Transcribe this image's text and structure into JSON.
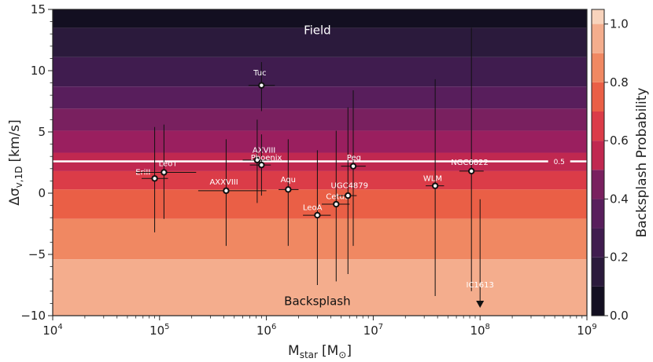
{
  "chart_data": {
    "type": "scatter",
    "x_scale": "log",
    "xlim": [
      10000,
      1000000000
    ],
    "ylim": [
      -10,
      15
    ],
    "xlabel_main": "M",
    "xlabel_sub": "star",
    "xlabel_unit_pre": "[M",
    "xlabel_unit_sym": "⊙",
    "xlabel_unit_post": "]",
    "ylabel_main": "Δσ",
    "ylabel_sub": "v,1D",
    "ylabel_unit": "[km/s]",
    "x_ticks": [
      {
        "exp": 4,
        "label_base": "10",
        "label_exp": "4"
      },
      {
        "exp": 5,
        "label_base": "10",
        "label_exp": "5"
      },
      {
        "exp": 6,
        "label_base": "10",
        "label_exp": "6"
      },
      {
        "exp": 7,
        "label_base": "10",
        "label_exp": "7"
      },
      {
        "exp": 8,
        "label_base": "10",
        "label_exp": "8"
      },
      {
        "exp": 9,
        "label_base": "10",
        "label_exp": "9"
      }
    ],
    "y_ticks": [
      {
        "value": -10,
        "label": "−10"
      },
      {
        "value": -5,
        "label": "−5"
      },
      {
        "value": 0,
        "label": "0"
      },
      {
        "value": 5,
        "label": "5"
      },
      {
        "value": 10,
        "label": "10"
      },
      {
        "value": 15,
        "label": "15"
      }
    ],
    "bands": [
      {
        "y0": 13.5,
        "y1": 15,
        "color": "#130f21"
      },
      {
        "y0": 11.1,
        "y1": 13.5,
        "color": "#2b1a3c"
      },
      {
        "y0": 8.7,
        "y1": 11.1,
        "color": "#401c4f"
      },
      {
        "y0": 6.9,
        "y1": 8.7,
        "color": "#581e5c"
      },
      {
        "y0": 5.1,
        "y1": 6.9,
        "color": "#79205f"
      },
      {
        "y0": 3.3,
        "y1": 5.1,
        "color": "#9a1f5f"
      },
      {
        "y0": 1.8,
        "y1": 3.3,
        "color": "#c02850"
      },
      {
        "y0": 0.3,
        "y1": 1.8,
        "color": "#db3c48"
      },
      {
        "y0": -2.1,
        "y1": 0.3,
        "color": "#ea5f46"
      },
      {
        "y0": -5.4,
        "y1": -2.1,
        "color": "#f08862"
      },
      {
        "y0": -10,
        "y1": -5.4,
        "color": "#f4ad8d"
      }
    ],
    "threshold_line": {
      "y": 2.6,
      "label": "0.5",
      "color": "#ffffff"
    },
    "region_labels": [
      {
        "text": "Field",
        "x": 3000000,
        "y": 13.3,
        "color": "#ffffff"
      },
      {
        "text": "Backsplash",
        "x": 3000000,
        "y": -8.8,
        "color": "#111111"
      }
    ],
    "points": [
      {
        "name": "Tuc",
        "x": 900000,
        "xerr_lo": 680000,
        "xerr_hi": 1200000,
        "y": 8.8,
        "ylo": 6.7,
        "yhi": 10.7,
        "lx": 870000,
        "ly": 9.8
      },
      {
        "name": "EriII",
        "x": 90000,
        "xerr_lo": 68000,
        "xerr_hi": 120000,
        "y": 1.2,
        "ylo": -3.2,
        "yhi": 5.4,
        "lx": 70000,
        "ly": 1.7
      },
      {
        "name": "LeoT",
        "x": 110000,
        "xerr_lo": 60000,
        "xerr_hi": 220000,
        "y": 1.7,
        "ylo": -2.1,
        "yhi": 5.6,
        "lx": 120000,
        "ly": 2.4
      },
      {
        "name": "AXXVIII",
        "x": 420000,
        "xerr_lo": 230000,
        "xerr_hi": 1000000,
        "y": 0.2,
        "ylo": -4.3,
        "yhi": 4.4,
        "lx": 400000,
        "ly": 0.9
      },
      {
        "name": "AXVIII",
        "x": 820000,
        "xerr_lo": 600000,
        "xerr_hi": 1100000,
        "y": 2.7,
        "ylo": -0.8,
        "yhi": 6.0,
        "lx": 950000,
        "ly": 3.5
      },
      {
        "name": "Phoenix",
        "x": 900000,
        "xerr_lo": 700000,
        "xerr_hi": 1100000,
        "y": 2.3,
        "ylo": -0.2,
        "yhi": 4.8,
        "lx": 1000000,
        "ly": 2.9
      },
      {
        "name": "Aqu",
        "x": 1600000,
        "xerr_lo": 1300000,
        "xerr_hi": 2000000,
        "y": 0.3,
        "ylo": -4.3,
        "yhi": 4.4,
        "lx": 1600000,
        "ly": 1.1
      },
      {
        "name": "LeoA",
        "x": 3000000,
        "xerr_lo": 2200000,
        "xerr_hi": 4000000,
        "y": -1.8,
        "ylo": -7.5,
        "yhi": 3.5,
        "lx": 2700000,
        "ly": -1.2
      },
      {
        "name": "Cetus",
        "x": 4500000,
        "xerr_lo": 3300000,
        "xerr_hi": 6000000,
        "y": -0.9,
        "ylo": -7.2,
        "yhi": 5.1,
        "lx": 4600000,
        "ly": -0.3
      },
      {
        "name": "UGC4879",
        "x": 5800000,
        "xerr_lo": 4700000,
        "xerr_hi": 7000000,
        "y": -0.2,
        "ylo": -6.6,
        "yhi": 7.0,
        "lx": 6000000,
        "ly": 0.6
      },
      {
        "name": "Peg",
        "x": 6500000,
        "xerr_lo": 5000000,
        "xerr_hi": 8500000,
        "y": 2.2,
        "ylo": -4.3,
        "yhi": 8.4,
        "lx": 6600000,
        "ly": 2.9
      },
      {
        "name": "WLM",
        "x": 38000000,
        "xerr_lo": 31000000,
        "xerr_hi": 46000000,
        "y": 0.6,
        "ylo": -8.4,
        "yhi": 9.3,
        "lx": 36000000,
        "ly": 1.2
      },
      {
        "name": "NGC6822",
        "x": 83000000,
        "xerr_lo": 64000000,
        "xerr_hi": 108000000,
        "y": 1.8,
        "ylo": -8.0,
        "yhi": 13.5,
        "lx": 80000000,
        "ly": 2.5
      },
      {
        "name": "IC1613",
        "x": 100000000,
        "xerr_lo": 100000000,
        "xerr_hi": 100000000,
        "y": -9.1,
        "ylo": -9.1,
        "yhi": -0.5,
        "lx": 100000000,
        "ly": -7.5,
        "upper_limit": true
      }
    ],
    "colorbar": {
      "label": "Backsplash Probability",
      "ticks": [
        {
          "value": 0.0,
          "label": "0.0"
        },
        {
          "value": 0.2,
          "label": "0.2"
        },
        {
          "value": 0.4,
          "label": "0.4"
        },
        {
          "value": 0.6,
          "label": "0.6"
        },
        {
          "value": 0.8,
          "label": "0.8"
        },
        {
          "value": 1.0,
          "label": "1.0"
        }
      ],
      "segments": [
        {
          "v0": 0.0,
          "v1": 0.1,
          "color": "#130f21"
        },
        {
          "v0": 0.1,
          "v1": 0.2,
          "color": "#2b1a3c"
        },
        {
          "v0": 0.2,
          "v1": 0.3,
          "color": "#401c4f"
        },
        {
          "v0": 0.3,
          "v1": 0.4,
          "color": "#581e5c"
        },
        {
          "v0": 0.4,
          "v1": 0.5,
          "color": "#79205f"
        },
        {
          "v0": 0.5,
          "v1": 0.6,
          "color": "#c02850"
        },
        {
          "v0": 0.6,
          "v1": 0.7,
          "color": "#db3c48"
        },
        {
          "v0": 0.7,
          "v1": 0.8,
          "color": "#ea5f46"
        },
        {
          "v0": 0.8,
          "v1": 0.9,
          "color": "#f08862"
        },
        {
          "v0": 0.9,
          "v1": 1.0,
          "color": "#f4ad8d"
        },
        {
          "v0": 1.0,
          "v1": 1.05,
          "color": "#f8d3bc"
        }
      ]
    }
  }
}
